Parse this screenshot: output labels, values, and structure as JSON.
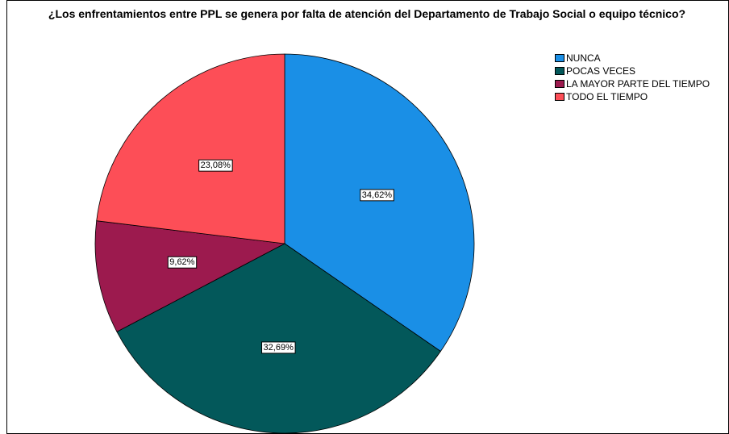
{
  "chart_data": {
    "type": "pie",
    "title": "¿Los enfrentamientos entre PPL se genera por falta de atención del Departamento de Trabajo Social o equipo técnico?",
    "categories": [
      "NUNCA",
      "POCAS VECES",
      "LA MAYOR PARTE DEL TIEMPO",
      "TODO EL TIEMPO"
    ],
    "values": [
      34.62,
      32.69,
      9.62,
      23.08
    ],
    "value_labels": [
      "34,62%",
      "32,69%",
      "9,62%",
      "23,08%"
    ],
    "colors": [
      "#1a8fe6",
      "#03585a",
      "#9c1a4e",
      "#fd4e57"
    ]
  }
}
